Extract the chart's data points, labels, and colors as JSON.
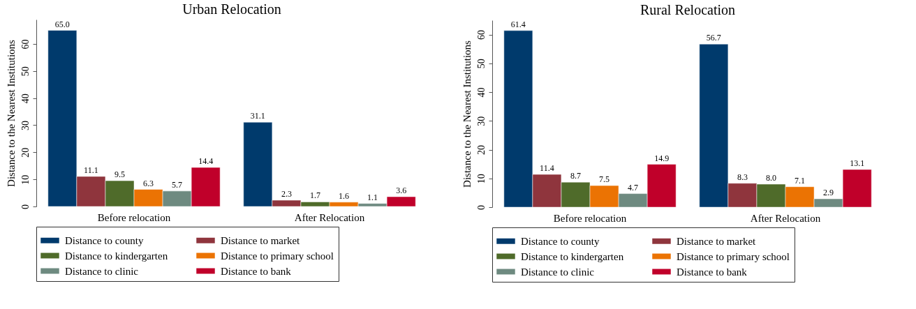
{
  "chart_data": [
    {
      "type": "bar",
      "title": "Urban Relocation",
      "ylabel": "Distance to the Nearest Institutions",
      "categories": [
        "Before relocation",
        "After Relocation"
      ],
      "ylim": [
        0,
        69
      ],
      "yticks": [
        0,
        10,
        20,
        30,
        40,
        50,
        60
      ],
      "grid": false,
      "legend": "bottom",
      "series": [
        {
          "name": "Distance to county",
          "color": "#003a6c",
          "values": [
            65.0,
            31.1
          ],
          "value_labels": [
            "65.0",
            "31.1"
          ]
        },
        {
          "name": "Distance to market",
          "color": "#8f353d",
          "values": [
            11.1,
            2.3
          ],
          "value_labels": [
            "11.1",
            "2.3"
          ]
        },
        {
          "name": "Distance to kindergarten",
          "color": "#4f6b2a",
          "values": [
            9.5,
            1.7
          ],
          "value_labels": [
            "9.5",
            "1.7"
          ]
        },
        {
          "name": "Distance to primary school",
          "color": "#eb7303",
          "values": [
            6.3,
            1.6
          ],
          "value_labels": [
            "6.3",
            "1.6"
          ]
        },
        {
          "name": "Distance to clinic",
          "color": "#6e8a80",
          "values": [
            5.7,
            1.1
          ],
          "value_labels": [
            "5.7",
            "1.1"
          ]
        },
        {
          "name": "Distance to bank",
          "color": "#c0002a",
          "values": [
            14.4,
            3.6
          ],
          "value_labels": [
            "14.4",
            "3.6"
          ]
        }
      ]
    },
    {
      "type": "bar",
      "title": "Rural Relocation",
      "ylabel": "Distance to the Nearest Institutions",
      "categories": [
        "Before relocation",
        "After Relocation"
      ],
      "ylim": [
        0,
        65
      ],
      "yticks": [
        0,
        10,
        20,
        30,
        40,
        50,
        60
      ],
      "grid": false,
      "legend": "bottom",
      "series": [
        {
          "name": "Distance to county",
          "color": "#003a6c",
          "values": [
            61.4,
            56.7
          ],
          "value_labels": [
            "61.4",
            "56.7"
          ]
        },
        {
          "name": "Distance to market",
          "color": "#8f353d",
          "values": [
            11.4,
            8.3
          ],
          "value_labels": [
            "11.4",
            "8.3"
          ]
        },
        {
          "name": "Distance to kindergarten",
          "color": "#4f6b2a",
          "values": [
            8.7,
            8.0
          ],
          "value_labels": [
            "8.7",
            "8.0"
          ]
        },
        {
          "name": "Distance to primary school",
          "color": "#eb7303",
          "values": [
            7.5,
            7.1
          ],
          "value_labels": [
            "7.5",
            "7.1"
          ]
        },
        {
          "name": "Distance to clinic",
          "color": "#6e8a80",
          "values": [
            4.7,
            2.9
          ],
          "value_labels": [
            "4.7",
            "2.9"
          ]
        },
        {
          "name": "Distance to bank",
          "color": "#c0002a",
          "values": [
            14.9,
            13.1
          ],
          "value_labels": [
            "14.9",
            "13.1"
          ]
        }
      ]
    }
  ]
}
